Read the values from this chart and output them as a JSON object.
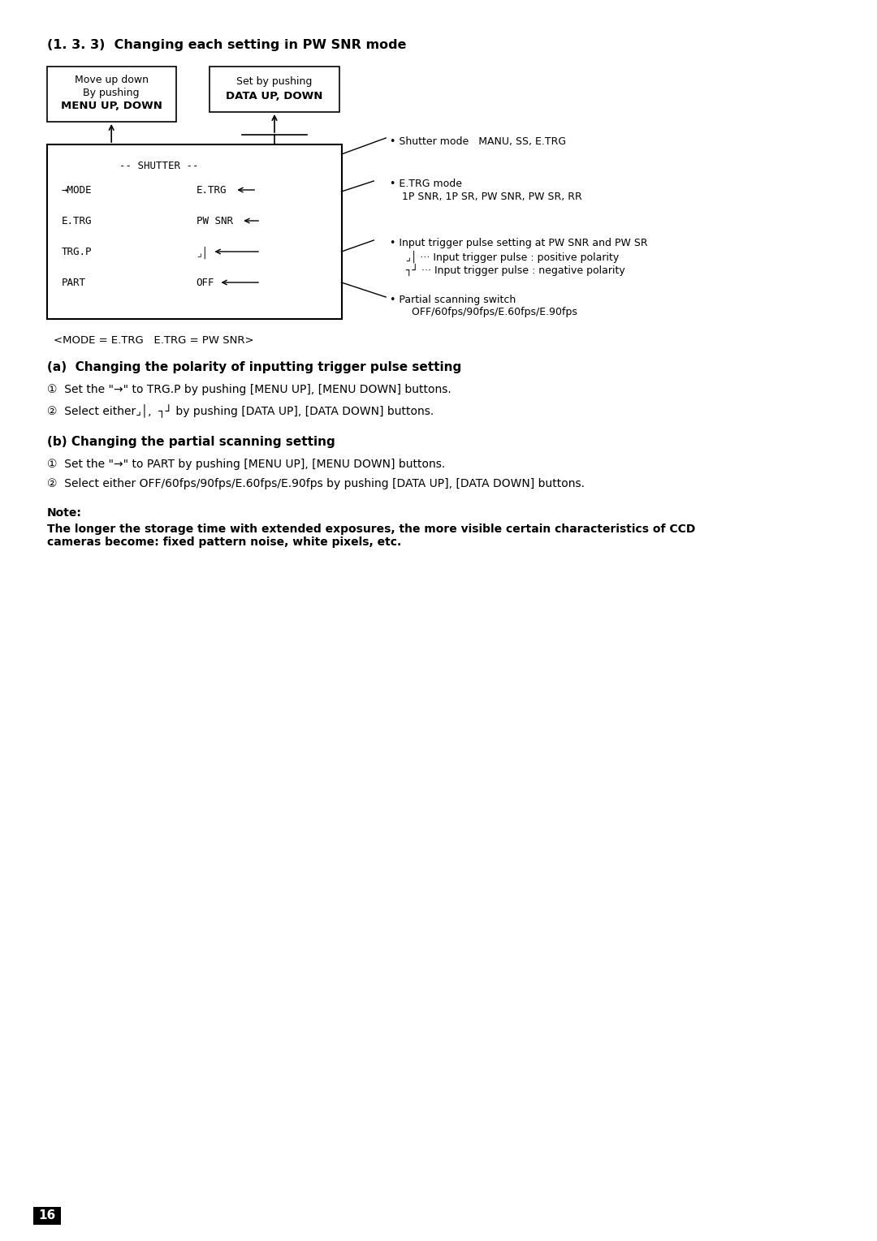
{
  "bg_color": "#ffffff",
  "page_number": "16",
  "section_title": "(1. 3. 3)  Changing each setting in PW SNR mode",
  "box1_lines": [
    "Move up down",
    "By pushing",
    "MENU UP, DOWN"
  ],
  "box2_lines": [
    "Set by pushing",
    "DATA UP, DOWN"
  ],
  "shutter_label": "-- SHUTTER --",
  "menu_items_left": [
    "→MODE",
    "E.TRG",
    "TRG.P",
    "PART"
  ],
  "menu_items_right": [
    "E.TRG",
    "PW SNR",
    "⌟│",
    "OFF"
  ],
  "caption": "<MODE = E.TRG   E.TRG = PW SNR>",
  "bullet1_title": "• Shutter mode   MANU, SS, E.TRG",
  "bullet2_title": "• E.TRG mode",
  "bullet2_sub": "1P SNR, 1P SR, PW SNR, PW SR, RR",
  "bullet3_title": "• Input trigger pulse setting at PW SNR and PW SR",
  "bullet3_sub1": "   ⌟│ ··· Input trigger pulse : positive polarity",
  "bullet3_sub2": "   ┐┘ ··· Input trigger pulse : negative polarity",
  "bullet4_title": "• Partial scanning switch",
  "bullet4_sub": "   OFF/60fps/90fps/E.60fps/E.90fps",
  "section_a_title": "(a)  Changing the polarity of inputting trigger pulse setting",
  "section_a_1": "①  Set the \"→\" to TRG.P by pushing [MENU UP], [MENU DOWN] buttons.",
  "section_a_2": "②  Select either⌟│,  ┐┘ by pushing [DATA UP], [DATA DOWN] buttons.",
  "section_b_title": "(b) Changing the partial scanning setting",
  "section_b_1": "①  Set the \"→\" to PART by pushing [MENU UP], [MENU DOWN] buttons.",
  "section_b_2": "②  Select either OFF/60fps/90fps/E.60fps/E.90fps by pushing [DATA UP], [DATA DOWN] buttons.",
  "note_label": "Note:",
  "note_text": "The longer the storage time with extended exposures, the more visible certain characteristics of CCD\ncameras become: fixed pattern noise, white pixels, etc."
}
